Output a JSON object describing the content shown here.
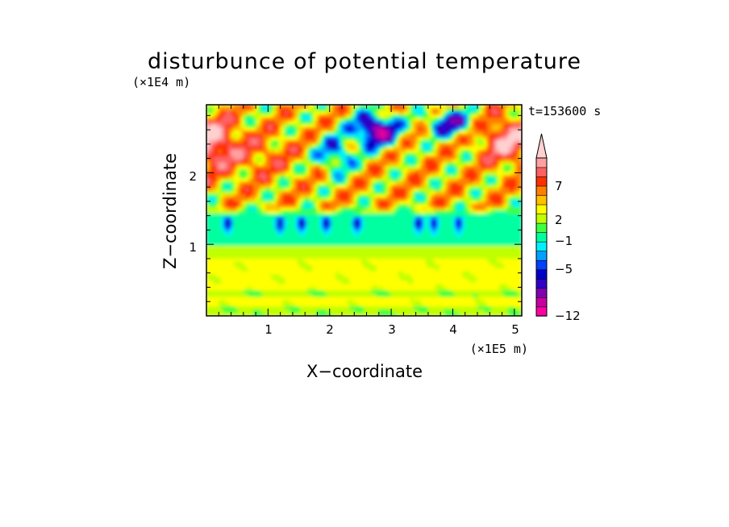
{
  "chart_data": {
    "type": "heatmap",
    "title": "disturbunce of potential temperature",
    "xlabel": "X−coordinate",
    "ylabel": "Z−coordinate",
    "x_unit": "(×1E5 m)",
    "y_unit": "(×1E4 m)",
    "time_label": "t=153600 s",
    "xlim": [
      0,
      5.12
    ],
    "ylim": [
      0,
      2.95
    ],
    "x_ticks": [
      1,
      2,
      3,
      4,
      5
    ],
    "y_ticks": [
      1,
      2
    ],
    "x_tick_labels": [
      "1",
      "2",
      "3",
      "4",
      "5"
    ],
    "y_tick_labels": [
      "1",
      "2"
    ],
    "colorbar": {
      "labels": [
        {
          "text": "7",
          "value": 7
        },
        {
          "text": "2",
          "value": 2
        },
        {
          "text": "−1",
          "value": -1
        },
        {
          "text": "−5",
          "value": -5
        },
        {
          "text": "−12",
          "value": -12
        }
      ],
      "levels": [
        -12,
        -10,
        -8,
        -6,
        -5,
        -4,
        -3,
        -2,
        -1,
        0,
        1,
        2,
        3,
        5,
        7,
        9,
        11
      ],
      "colors": [
        "#ff00a0",
        "#c800a0",
        "#8000b0",
        "#3000c8",
        "#0000c8",
        "#0040ff",
        "#00a0ff",
        "#00f0ff",
        "#00ffa0",
        "#40ff40",
        "#c0ff00",
        "#ffff00",
        "#ffc000",
        "#ff8000",
        "#ff3000",
        "#ff6060",
        "#ffa0a0",
        "#ffd0d0"
      ],
      "top_extend": true
    },
    "field_description": [
      {
        "region": "z 0-0.8",
        "value_range": [
          0,
          2
        ],
        "note": "green/yellow near-surface layer"
      },
      {
        "region": "z 0.8-1.0",
        "value": 0,
        "note": "green band"
      },
      {
        "region": "z 1.0-1.4",
        "value": -1.5,
        "note": "cyan layer with blue intrusions"
      },
      {
        "region": "z 1.4-2.9",
        "value_range": [
          -9,
          9
        ],
        "note": "wave pattern, orange/red warm and blue/purple cold anomalies"
      }
    ]
  }
}
